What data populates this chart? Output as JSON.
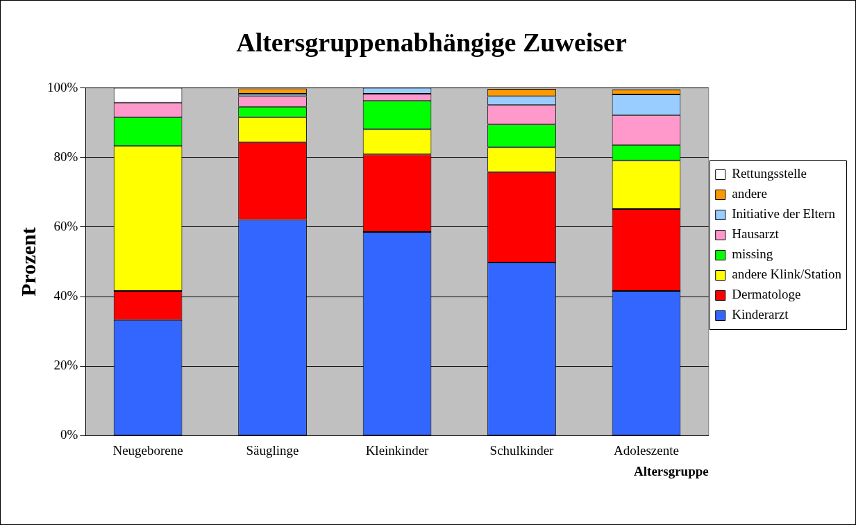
{
  "chart_data": {
    "type": "bar",
    "title": "Altersgruppenabhängige Zuweiser",
    "xlabel": "Altersgruppe",
    "ylabel": "Prozent",
    "categories": [
      "Neugeborene",
      "Säuglinge",
      "Kleinkinder",
      "Schulkinder",
      "Adoleszente"
    ],
    "stacked": true,
    "ylim": [
      0,
      100
    ],
    "yticks": [
      {
        "value": 0,
        "label": "0%"
      },
      {
        "value": 20,
        "label": "20%"
      },
      {
        "value": 40,
        "label": "40%"
      },
      {
        "value": 60,
        "label": "60%"
      },
      {
        "value": 80,
        "label": "80%"
      },
      {
        "value": 100,
        "label": "100%"
      }
    ],
    "grid": "y",
    "legend": "right",
    "series": [
      {
        "name": "Kinderarzt",
        "color": "#3366ff",
        "values": [
          33.3,
          62.1,
          58.6,
          49.8,
          41.6
        ]
      },
      {
        "name": "Dermatologe",
        "color": "#ff0000",
        "values": [
          8.3,
          22.3,
          22.3,
          26.0,
          23.6
        ]
      },
      {
        "name": "andere Klink/Station",
        "color": "#ffff00",
        "values": [
          41.7,
          7.2,
          7.2,
          7.1,
          13.9
        ]
      },
      {
        "name": "missing",
        "color": "#00ff00",
        "values": [
          8.3,
          3.0,
          8.2,
          6.6,
          4.5
        ]
      },
      {
        "name": "Hausarzt",
        "color": "#ff99cc",
        "values": [
          4.2,
          3.0,
          2.0,
          5.6,
          8.6
        ]
      },
      {
        "name": "Initiative der Eltern",
        "color": "#99ccff",
        "values": [
          null,
          0.7,
          1.7,
          2.5,
          5.9
        ]
      },
      {
        "name": "andere",
        "color": "#ff9900",
        "values": [
          null,
          1.5,
          null,
          2.1,
          1.4
        ]
      },
      {
        "name": "Rettungsstelle",
        "color": "#ffffff",
        "values": [
          4.2,
          null,
          null,
          null,
          null
        ]
      }
    ]
  }
}
